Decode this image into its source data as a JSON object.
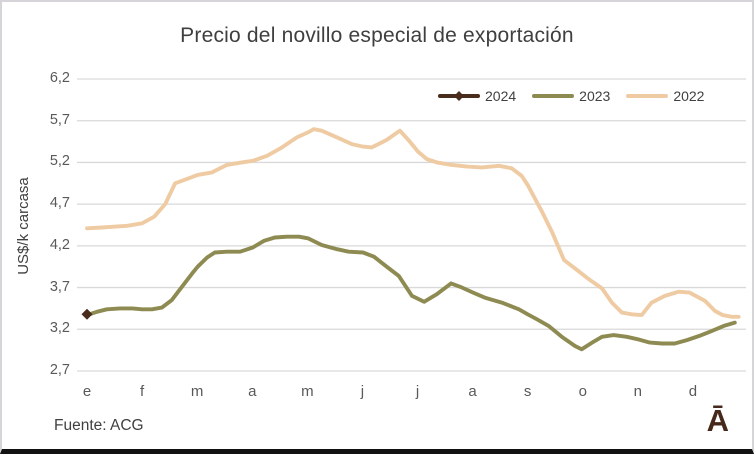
{
  "source": "Fuente: ACG",
  "logo_text": "Ā",
  "chart_data": {
    "type": "line",
    "title": "Precio del novillo especial de exportación",
    "ylabel": "US$/k carcasa",
    "xlabel": "",
    "ylim": [
      2.7,
      6.2
    ],
    "grid": true,
    "grid_color": "#d9d9d9",
    "legend_position": "top-right-inside",
    "x_ticks": [
      "e",
      "f",
      "m",
      "a",
      "m",
      "j",
      "j",
      "a",
      "s",
      "o",
      "n",
      "d"
    ],
    "y_ticks": [
      {
        "label": "6,2",
        "value": 6.2
      },
      {
        "label": "5,7",
        "value": 5.7
      },
      {
        "label": "5,2",
        "value": 5.2
      },
      {
        "label": "4,7",
        "value": 4.7
      },
      {
        "label": "4,2",
        "value": 4.2
      },
      {
        "label": "3,7",
        "value": 3.7
      },
      {
        "label": "3,2",
        "value": 3.2
      },
      {
        "label": "2,7",
        "value": 2.7
      }
    ],
    "x_unit": "month_decimal_0_is_january",
    "y_unit": "US$ per kg carcass",
    "series": [
      {
        "name": "2024",
        "color": "#4a2c1d",
        "marker": "diamond",
        "points": [
          [
            0.0,
            3.38
          ]
        ]
      },
      {
        "name": "2023",
        "color": "#8e8b52",
        "marker": "none",
        "points": [
          [
            0.0,
            3.37
          ],
          [
            0.18,
            3.41
          ],
          [
            0.36,
            3.44
          ],
          [
            0.6,
            3.45
          ],
          [
            0.82,
            3.45
          ],
          [
            1.0,
            3.44
          ],
          [
            1.18,
            3.44
          ],
          [
            1.36,
            3.46
          ],
          [
            1.54,
            3.55
          ],
          [
            1.69,
            3.68
          ],
          [
            1.91,
            3.87
          ],
          [
            2.01,
            3.95
          ],
          [
            2.18,
            4.06
          ],
          [
            2.32,
            4.12
          ],
          [
            2.54,
            4.13
          ],
          [
            2.78,
            4.13
          ],
          [
            3.01,
            4.18
          ],
          [
            3.21,
            4.26
          ],
          [
            3.41,
            4.3
          ],
          [
            3.63,
            4.31
          ],
          [
            3.85,
            4.31
          ],
          [
            4.01,
            4.29
          ],
          [
            4.26,
            4.21
          ],
          [
            4.54,
            4.16
          ],
          [
            4.75,
            4.13
          ],
          [
            5.01,
            4.12
          ],
          [
            5.21,
            4.07
          ],
          [
            5.44,
            3.95
          ],
          [
            5.66,
            3.84
          ],
          [
            5.9,
            3.6
          ],
          [
            6.12,
            3.53
          ],
          [
            6.35,
            3.62
          ],
          [
            6.61,
            3.75
          ],
          [
            6.81,
            3.7
          ],
          [
            7.01,
            3.64
          ],
          [
            7.22,
            3.58
          ],
          [
            7.53,
            3.52
          ],
          [
            7.84,
            3.44
          ],
          [
            8.0,
            3.38
          ],
          [
            8.17,
            3.32
          ],
          [
            8.38,
            3.24
          ],
          [
            8.62,
            3.11
          ],
          [
            8.86,
            3.0
          ],
          [
            8.98,
            2.96
          ],
          [
            9.17,
            3.04
          ],
          [
            9.35,
            3.11
          ],
          [
            9.56,
            3.13
          ],
          [
            9.8,
            3.11
          ],
          [
            10.0,
            3.08
          ],
          [
            10.22,
            3.04
          ],
          [
            10.44,
            3.03
          ],
          [
            10.67,
            3.03
          ],
          [
            10.89,
            3.07
          ],
          [
            11.11,
            3.12
          ],
          [
            11.34,
            3.18
          ],
          [
            11.56,
            3.24
          ],
          [
            11.76,
            3.28
          ]
        ]
      },
      {
        "name": "2022",
        "color": "#efcba3",
        "marker": "none",
        "points": [
          [
            0.0,
            4.41
          ],
          [
            0.27,
            4.42
          ],
          [
            0.49,
            4.43
          ],
          [
            0.73,
            4.44
          ],
          [
            1.0,
            4.47
          ],
          [
            1.22,
            4.55
          ],
          [
            1.42,
            4.7
          ],
          [
            1.6,
            4.95
          ],
          [
            1.81,
            5.0
          ],
          [
            2.01,
            5.05
          ],
          [
            2.27,
            5.08
          ],
          [
            2.54,
            5.17
          ],
          [
            2.81,
            5.2
          ],
          [
            3.01,
            5.22
          ],
          [
            3.27,
            5.28
          ],
          [
            3.54,
            5.38
          ],
          [
            3.81,
            5.5
          ],
          [
            4.01,
            5.56
          ],
          [
            4.12,
            5.6
          ],
          [
            4.26,
            5.58
          ],
          [
            4.54,
            5.5
          ],
          [
            4.81,
            5.42
          ],
          [
            5.01,
            5.39
          ],
          [
            5.17,
            5.38
          ],
          [
            5.44,
            5.47
          ],
          [
            5.68,
            5.58
          ],
          [
            5.86,
            5.45
          ],
          [
            6.01,
            5.33
          ],
          [
            6.17,
            5.24
          ],
          [
            6.35,
            5.2
          ],
          [
            6.62,
            5.17
          ],
          [
            6.9,
            5.15
          ],
          [
            7.17,
            5.14
          ],
          [
            7.48,
            5.16
          ],
          [
            7.71,
            5.13
          ],
          [
            7.89,
            5.04
          ],
          [
            8.0,
            4.93
          ],
          [
            8.26,
            4.61
          ],
          [
            8.44,
            4.37
          ],
          [
            8.66,
            4.03
          ],
          [
            8.86,
            3.93
          ],
          [
            9.11,
            3.8
          ],
          [
            9.35,
            3.69
          ],
          [
            9.53,
            3.52
          ],
          [
            9.71,
            3.4
          ],
          [
            9.89,
            3.38
          ],
          [
            10.07,
            3.37
          ],
          [
            10.25,
            3.52
          ],
          [
            10.49,
            3.6
          ],
          [
            10.74,
            3.65
          ],
          [
            10.94,
            3.64
          ],
          [
            11.22,
            3.54
          ],
          [
            11.4,
            3.42
          ],
          [
            11.54,
            3.37
          ],
          [
            11.71,
            3.35
          ],
          [
            11.83,
            3.35
          ]
        ]
      }
    ]
  }
}
